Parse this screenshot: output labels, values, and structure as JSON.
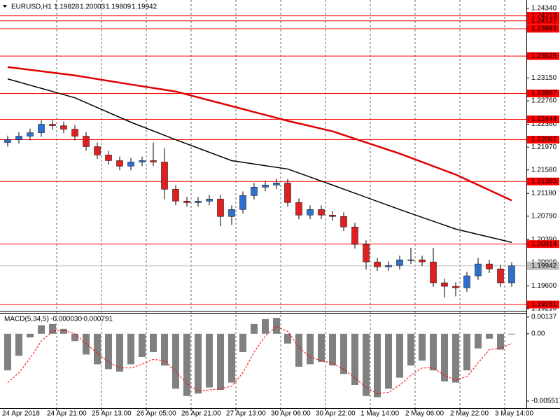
{
  "chart_data": [
    {
      "type": "candlestick",
      "title": "EURUSD,H1",
      "ohlc": [
        1.19828,
        1.20003,
        1.19809,
        1.19942
      ],
      "categories": [
        "24 Apr 2018",
        null,
        null,
        null,
        "24 Apr 21:00",
        null,
        null,
        null,
        "25 Apr 13:00",
        null,
        null,
        null,
        "26 Apr 05:00",
        null,
        null,
        null,
        "26 Apr 21:00",
        null,
        null,
        null,
        "27 Apr 13:00",
        null,
        null,
        null,
        "30 Apr 06:00",
        null,
        null,
        null,
        "30 Apr 22:00",
        null,
        null,
        null,
        "1 May 14:00",
        null,
        null,
        null,
        "2 May 06:00",
        null,
        null,
        null,
        "2 May 22:00",
        null,
        null,
        null,
        "3 May 14:00",
        null
      ],
      "open": [
        1.2205,
        1.22097,
        1.22157,
        1.22216,
        1.2236,
        1.22336,
        1.22276,
        1.22157,
        1.21978,
        1.21835,
        1.21739,
        1.21644,
        1.21715,
        1.21739,
        1.21715,
        1.2125,
        1.21047,
        1.21023,
        1.21047,
        1.21083,
        1.20785,
        1.20904,
        1.21143,
        1.21286,
        1.21322,
        1.21357,
        1.21023,
        1.20809,
        1.20904,
        1.20809,
        1.20785,
        1.20606,
        1.20308,
        1.20009,
        1.19926,
        1.1995,
        1.20045,
        1.20045,
        1.20009,
        1.19652,
        1.19592,
        1.19568,
        1.19771,
        1.19974,
        1.1989,
        1.19652
      ],
      "high": [
        1.22167,
        1.22227,
        1.22286,
        1.2243,
        1.2243,
        1.22406,
        1.22346,
        1.22227,
        1.22048,
        1.21905,
        1.21809,
        1.21785,
        1.21809,
        1.2205,
        1.2195,
        1.2132,
        1.21117,
        1.21117,
        1.21153,
        1.21153,
        1.20974,
        1.21213,
        1.21356,
        1.21392,
        1.2143,
        1.21427,
        1.21093,
        1.20974,
        1.20974,
        1.20879,
        1.20855,
        1.20676,
        1.20378,
        1.20079,
        1.2002,
        1.20115,
        1.2025,
        1.20115,
        1.2025,
        1.19722,
        1.19662,
        1.19841,
        1.2008,
        1.20044,
        1.1996,
        1.20003
      ],
      "low": [
        1.2198,
        1.22027,
        1.22087,
        1.22146,
        1.22266,
        1.22206,
        1.22087,
        1.21908,
        1.21765,
        1.21669,
        1.21574,
        1.21574,
        1.21645,
        1.21645,
        1.2108,
        1.20977,
        1.20953,
        1.20953,
        1.20977,
        1.2062,
        1.2064,
        1.20834,
        1.21073,
        1.21216,
        1.21252,
        1.20953,
        1.20739,
        1.20739,
        1.20739,
        1.20715,
        1.20536,
        1.20238,
        1.1988,
        1.19856,
        1.19856,
        1.1988,
        1.19975,
        1.19939,
        1.19582,
        1.194,
        1.1942,
        1.19498,
        1.19701,
        1.1982,
        1.19582,
        1.19582
      ],
      "close": [
        1.22097,
        1.22157,
        1.22216,
        1.2236,
        1.22336,
        1.22276,
        1.22157,
        1.21978,
        1.21835,
        1.21739,
        1.21644,
        1.21715,
        1.21739,
        1.21715,
        1.2125,
        1.21047,
        1.21023,
        1.21047,
        1.21083,
        1.20785,
        1.20904,
        1.21143,
        1.21286,
        1.21322,
        1.21357,
        1.21023,
        1.20809,
        1.20904,
        1.20809,
        1.20785,
        1.20606,
        1.20308,
        1.20009,
        1.19926,
        1.1995,
        1.20045,
        1.20045,
        1.20009,
        1.19652,
        1.19592,
        1.19568,
        1.19771,
        1.19974,
        1.1989,
        1.19652,
        1.19942
      ],
      "up_color": "#2f6fcf",
      "down_color": "#e02020",
      "wick_color": "#000000",
      "moving_averages": [
        {
          "color": "#e00000",
          "x": [
            0,
            6,
            11,
            15,
            20,
            25,
            29,
            35,
            40,
            45
          ],
          "values": [
            1.23338,
            1.23195,
            1.2304,
            1.2292,
            1.2267,
            1.22419,
            1.2224,
            1.21859,
            1.21501,
            1.21059
          ]
        },
        {
          "color": "#000000",
          "x": [
            0,
            6,
            11,
            15,
            20,
            25,
            29,
            35,
            40,
            45
          ],
          "values": [
            1.23135,
            1.22813,
            1.22395,
            1.22097,
            1.21739,
            1.21596,
            1.21322,
            1.20904,
            1.2057,
            1.20343
          ]
        }
      ],
      "ylim": [
        1.19174,
        1.24483
      ],
      "yticks": [
        {
          "value": 1.2434,
          "label": "1.24340"
        },
        {
          "value": 1.2315,
          "label": "1.23150"
        },
        {
          "value": 1.2276,
          "label": "1.22760"
        },
        {
          "value": 1.2236,
          "label": "1.22360"
        },
        {
          "value": 1.2197,
          "label": "1.21970"
        },
        {
          "value": 1.2158,
          "label": "1.21580"
        },
        {
          "value": 1.2118,
          "label": "1.21180"
        },
        {
          "value": 1.2079,
          "label": "1.20790"
        },
        {
          "value": 1.2039,
          "label": "1.20390"
        },
        {
          "value": 1.2,
          "label": "1.20000"
        },
        {
          "value": 1.196,
          "label": "1.19600"
        },
        {
          "value": 1.1921,
          "label": "1.19210"
        }
      ],
      "levels": [
        1.24213,
        1.24127,
        1.23993,
        1.23525,
        1.22887,
        1.22444,
        1.22097,
        1.21383,
        1.20314,
        1.19281
      ],
      "level_color": "#ff0000",
      "last_price": 1.19942,
      "grid": true
    },
    {
      "type": "macd",
      "title": "MACD(5,34,5)",
      "title_values": [
        {
          "value": -3e-05,
          "label": "-0.000030"
        },
        -0.000791
      ],
      "values": [
        -0.003,
        -0.0018,
        -0.0003,
        0.0007,
        0.0008,
        0.0004,
        -0.0006,
        -0.0017,
        -0.0025,
        -0.0029,
        -0.0031,
        -0.0025,
        -0.0019,
        -0.0015,
        -0.0026,
        -0.0045,
        -0.0051,
        -0.0049,
        -0.0044,
        -0.0046,
        -0.004,
        -0.0015,
        0.0008,
        0.0012,
        0.0013,
        -0.0008,
        -0.0027,
        -0.0025,
        -0.0023,
        -0.0026,
        -0.0033,
        -0.0042,
        -0.0051,
        -0.0052,
        -0.0045,
        -0.0036,
        -0.0026,
        -0.0022,
        -0.003,
        -0.0039,
        -0.004,
        -0.003,
        -0.0012,
        -0.0004,
        -0.0013,
        -3e-05
      ],
      "signal": [
        -0.004,
        -0.0032,
        -0.002,
        -0.0006,
        0.0002,
        0.0003,
        0.0,
        -0.0008,
        -0.0016,
        -0.0023,
        -0.0028,
        -0.0028,
        -0.0025,
        -0.0021,
        -0.0022,
        -0.0031,
        -0.0041,
        -0.0047,
        -0.0046,
        -0.0045,
        -0.0043,
        -0.0032,
        -0.0015,
        -0.0002,
        0.0006,
        0.0002,
        -0.0011,
        -0.0019,
        -0.0022,
        -0.0024,
        -0.0029,
        -0.0036,
        -0.0044,
        -0.0049,
        -0.0048,
        -0.0042,
        -0.0034,
        -0.0028,
        -0.0028,
        -0.0034,
        -0.0038,
        -0.0035,
        -0.0024,
        -0.0013,
        -0.0012,
        -0.000791
      ],
      "color": "#808080",
      "signal_color": "#ff0000",
      "ylim": [
        -0.00609,
        0.00171
      ],
      "yticks": [
        0.00137,
        {
          "value": 0,
          "label": "0.00"
        },
        -0.005517
      ]
    }
  ]
}
